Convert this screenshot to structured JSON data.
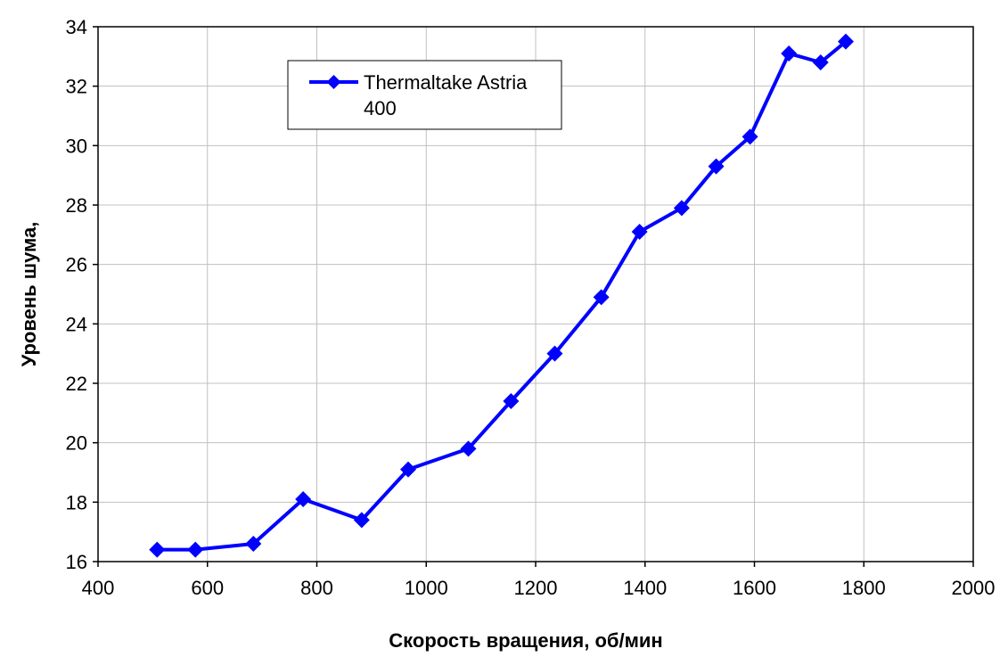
{
  "chart_data": {
    "type": "line",
    "title": "",
    "xlabel": "Скорость вращения, об/мин",
    "ylabel": "Уровень шума,",
    "xlim": [
      400,
      2000
    ],
    "ylim": [
      16,
      34
    ],
    "xticks": [
      400,
      600,
      800,
      1000,
      1200,
      1400,
      1600,
      1800,
      2000
    ],
    "yticks": [
      16,
      18,
      20,
      22,
      24,
      26,
      28,
      30,
      32,
      34
    ],
    "grid": true,
    "legend": {
      "placement": "top-left",
      "entries": [
        [
          "Thermaltake Astria",
          "400"
        ]
      ]
    },
    "series": [
      {
        "name": "Thermaltake Astria 400",
        "color": "#0000ff",
        "marker": "diamond",
        "x": [
          508,
          578,
          684,
          775,
          882,
          967,
          1077,
          1155,
          1235,
          1320,
          1390,
          1467,
          1530,
          1592,
          1663,
          1721,
          1767
        ],
        "y": [
          16.4,
          16.4,
          16.6,
          18.1,
          17.4,
          19.1,
          19.8,
          21.4,
          23.0,
          24.9,
          27.1,
          27.9,
          29.3,
          30.3,
          33.1,
          32.8,
          33.5
        ]
      }
    ]
  }
}
